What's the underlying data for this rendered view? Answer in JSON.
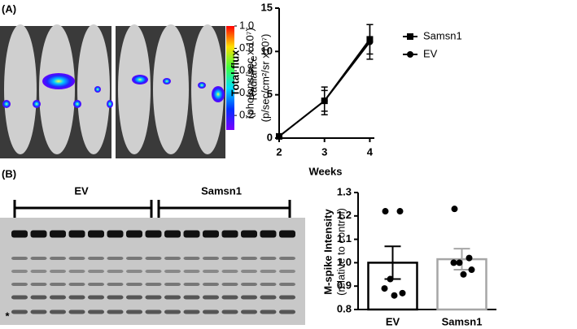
{
  "panels": {
    "a": "(A)",
    "b": "(B)"
  },
  "colorbar": {
    "label": "Radiance",
    "units": "(p/sec/cm²/sr x10⁷)",
    "lim": [
      0.07,
      1.0
    ],
    "ticks": [
      0.2,
      0.4,
      0.6,
      0.8,
      {
        "value": 1.0,
        "label": "1.0"
      }
    ]
  },
  "gel": {
    "groups": [
      "EV",
      "Samsn1"
    ],
    "marker": "*"
  },
  "chart_data": [
    {
      "type": "line",
      "ylabel": "Total flux",
      "yunits": "(photons/sec x 10⁷)",
      "xlabel": "Weeks",
      "x": [
        2,
        3,
        4
      ],
      "xlim": [
        2,
        4.1
      ],
      "xticks": [
        2,
        3,
        4
      ],
      "ylim": [
        0,
        15
      ],
      "yticks": [
        0,
        5,
        10,
        15
      ],
      "series": [
        {
          "name": "Samsn1",
          "marker": "square",
          "color": "#000000",
          "values": [
            0.2,
            4.3,
            11.4
          ],
          "errors": [
            0.1,
            1.6,
            1.7
          ]
        },
        {
          "name": "EV",
          "marker": "circle",
          "color": "#000000",
          "values": [
            0.2,
            4.3,
            11.1
          ],
          "errors": [
            0.1,
            1.2,
            2.0
          ]
        }
      ]
    },
    {
      "type": "bar",
      "ylabel": "M-spike Intensity",
      "yunits": "(relative to control)",
      "categories": [
        "EV",
        "Samsn1"
      ],
      "values": [
        1.0,
        1.015
      ],
      "errors": [
        0.07,
        0.045
      ],
      "colors": [
        "#000000",
        "#a6a6a6"
      ],
      "points": [
        [
          1.22,
          1.22,
          0.93,
          0.89,
          0.87,
          0.86
        ],
        [
          1.23,
          1.02,
          1.0,
          1.0,
          0.97,
          0.95
        ]
      ],
      "ylim": [
        0.8,
        1.3
      ],
      "yticks": [
        0.8,
        0.9,
        {
          "value": 1.0,
          "label": "1.0"
        },
        1.1,
        1.2,
        1.3
      ]
    }
  ]
}
